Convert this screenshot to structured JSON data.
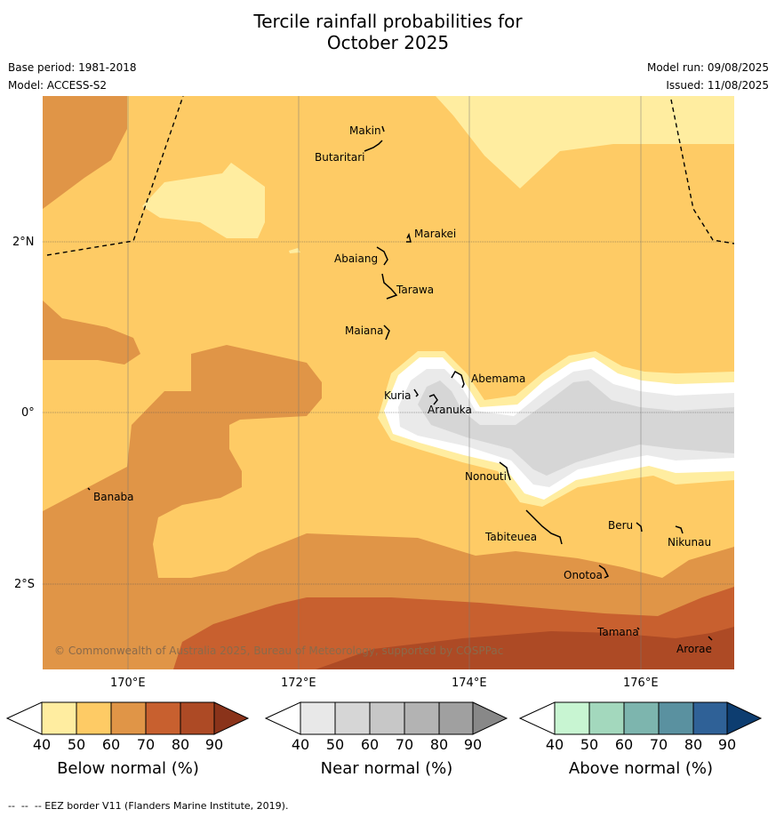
{
  "title_line1": "Tercile rainfall probabilities for",
  "title_line2": "October 2025",
  "meta": {
    "base_period": "Base period: 1981-2018",
    "model": "Model: ACCESS-S2",
    "model_run": "Model run: 09/08/2025",
    "issued": "Issued: 11/08/2025"
  },
  "axes": {
    "lat_labels": [
      "2°N",
      "0°",
      "2°S"
    ],
    "lon_labels": [
      "170°E",
      "172°E",
      "174°E",
      "176°E"
    ]
  },
  "islands": [
    {
      "name": "Makin",
      "lat": 3.3,
      "lon": 172.9
    },
    {
      "name": "Butaritari",
      "lat": 3.1,
      "lon": 172.8
    },
    {
      "name": "Marakei",
      "lat": 2.0,
      "lon": 173.3
    },
    {
      "name": "Abaiang",
      "lat": 1.8,
      "lon": 173.0
    },
    {
      "name": "Tarawa",
      "lat": 1.4,
      "lon": 173.0
    },
    {
      "name": "Maiana",
      "lat": 0.95,
      "lon": 173.0
    },
    {
      "name": "Abemama",
      "lat": 0.4,
      "lon": 173.9
    },
    {
      "name": "Kuria",
      "lat": 0.22,
      "lon": 173.4
    },
    {
      "name": "Aranuka",
      "lat": 0.15,
      "lon": 173.6
    },
    {
      "name": "Nonouti",
      "lat": -0.7,
      "lon": 174.4
    },
    {
      "name": "Banaba",
      "lat": -0.87,
      "lon": 169.53
    },
    {
      "name": "Tabiteuea",
      "lat": -1.3,
      "lon": 174.8
    },
    {
      "name": "Beru",
      "lat": -1.3,
      "lon": 175.98
    },
    {
      "name": "Nikunau",
      "lat": -1.35,
      "lon": 176.45
    },
    {
      "name": "Onotoa",
      "lat": -1.85,
      "lon": 175.55
    },
    {
      "name": "Tamana",
      "lat": -2.5,
      "lon": 175.98
    },
    {
      "name": "Arorae",
      "lat": -2.65,
      "lon": 176.8
    }
  ],
  "copyright": "© Commonwealth of Australia 2025, Bureau of Meteorology, supported by COSPPac",
  "colorbars": [
    {
      "title": "Below normal (%)",
      "ticks": [
        "40",
        "50",
        "60",
        "70",
        "80",
        "90"
      ],
      "colors": [
        "#ffeda0",
        "#fecb65",
        "#e09547",
        "#c8602f",
        "#ad4a25",
        "#8a331a"
      ]
    },
    {
      "title": "Near normal (%)",
      "ticks": [
        "40",
        "50",
        "60",
        "70",
        "80",
        "90"
      ],
      "colors": [
        "#e8e8e8",
        "#d6d6d6",
        "#c7c7c7",
        "#b3b3b3",
        "#a0a0a0",
        "#888888"
      ]
    },
    {
      "title": "Above normal (%)",
      "ticks": [
        "40",
        "50",
        "60",
        "70",
        "80",
        "90"
      ],
      "colors": [
        "#c8f5d2",
        "#a3d8bd",
        "#7db5ae",
        "#5a91a0",
        "#2f6197",
        "#0d3d70"
      ]
    }
  ],
  "footer": "--  --  -- EEZ border V11 (Flanders Marine Institute, 2019).",
  "colors": {
    "below_50": "#ffeda0",
    "below_60": "#fecb65",
    "below_70": "#e09547",
    "below_80": "#c8602f",
    "below_90": "#ad4a25",
    "near_40": "#eaeaea",
    "near_50": "#d6d6d6",
    "white_band": "#ffffff"
  }
}
